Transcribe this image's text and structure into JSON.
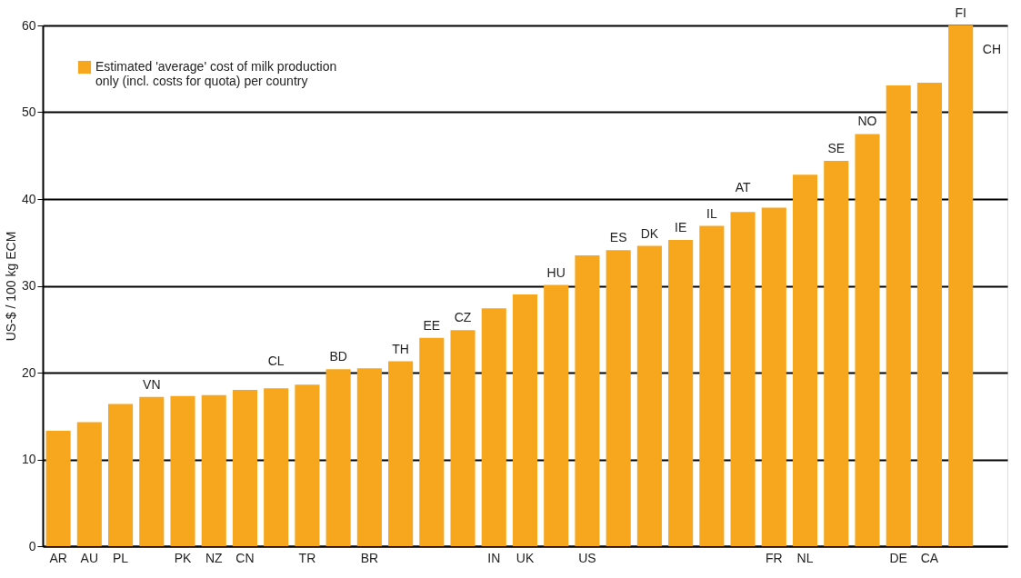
{
  "chart_data": {
    "type": "bar",
    "ylabel": "US-$ / 100 kg ECM",
    "categories": [
      "AR",
      "AU",
      "PL",
      null,
      "PK",
      "NZ",
      "CN",
      null,
      "TR",
      null,
      "BR",
      null,
      null,
      null,
      "IN",
      "UK",
      null,
      "US",
      null,
      null,
      null,
      null,
      null,
      "FR",
      "NL",
      null,
      null,
      "DE",
      "CA",
      null,
      null
    ],
    "series": [
      {
        "name": "Estimated 'average' cost of milk production only (incl. costs for quota) per country",
        "color": "#f7a71e",
        "values": [
          13.3,
          14.3,
          16.4,
          17.2,
          17.3,
          17.4,
          18.0,
          18.2,
          18.6,
          20.4,
          20.5,
          21.3,
          24.0,
          24.9,
          27.4,
          29.0,
          30.1,
          33.5,
          34.1,
          34.6,
          35.3,
          36.9,
          38.5,
          39.0,
          42.8,
          44.4,
          47.5,
          53.1,
          53.4,
          60,
          null
        ]
      }
    ],
    "annotations": [
      {
        "text": "VN",
        "y": 17.2
      },
      {
        "text": "CL",
        "y": 18.2
      },
      {
        "text": "BD",
        "y": 20.4
      },
      {
        "text": "TH",
        "y": 21.3
      },
      {
        "text": "EE",
        "y": 24.0
      },
      {
        "text": "CZ",
        "y": 24.9
      },
      {
        "text": "HU",
        "y": 30.1
      },
      {
        "text": "ES",
        "y": 34.1
      },
      {
        "text": "DK",
        "y": 34.6
      },
      {
        "text": "IE",
        "y": 35.3
      },
      {
        "text": "IL",
        "y": 36.9
      },
      {
        "text": "AT",
        "y": 38.5
      },
      {
        "text": "SE",
        "y": 44.4
      },
      {
        "text": "NO",
        "y": 47.5
      },
      {
        "text": "FI",
        "y": 60
      },
      {
        "text": "CH"
      }
    ],
    "ylim": [
      0,
      60
    ],
    "yticks": [
      0,
      10,
      20,
      30,
      40,
      50,
      60
    ],
    "grid": "y",
    "legend": "top left"
  }
}
